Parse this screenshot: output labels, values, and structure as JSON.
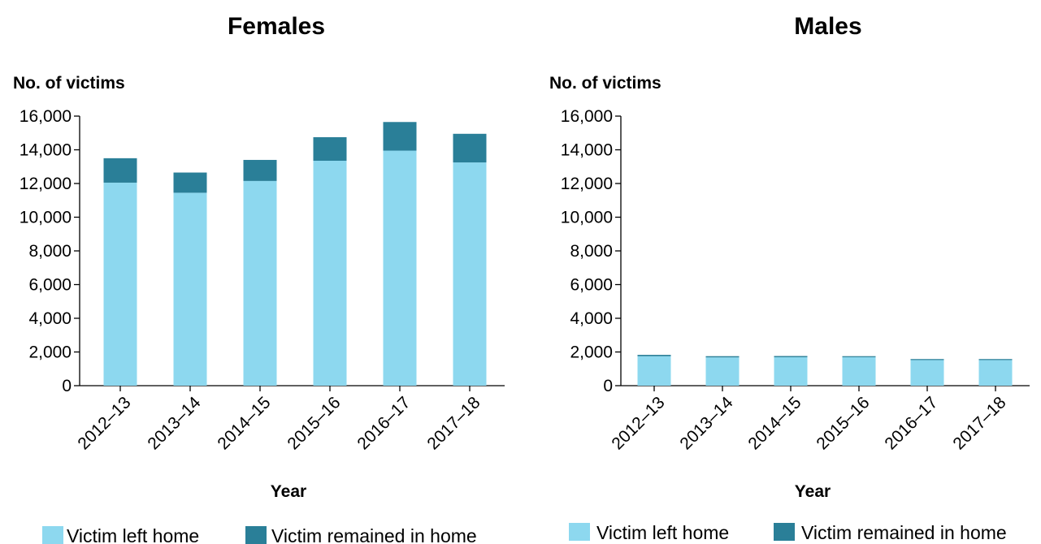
{
  "colors": {
    "victim_left_home": "#8dd8ef",
    "victim_remained_in_home": "#2a7f98",
    "axis": "#000000"
  },
  "chart_data": [
    {
      "type": "bar",
      "stacked": true,
      "title": "Females",
      "ylabel": "No. of victims",
      "xlabel": "Year",
      "ylim": [
        0,
        16000
      ],
      "yticks": [
        0,
        2000,
        4000,
        6000,
        8000,
        10000,
        12000,
        14000,
        16000
      ],
      "ytick_labels": [
        "0",
        "2,000",
        "4,000",
        "6,000",
        "8,000",
        "10,000",
        "12,000",
        "14,000",
        "16,000"
      ],
      "categories": [
        "2012–13",
        "2013–14",
        "2014–15",
        "2015–16",
        "2016–17",
        "2017–18"
      ],
      "series": [
        {
          "name": "Victim left home",
          "values": [
            12050,
            11450,
            12150,
            13350,
            13950,
            13250
          ]
        },
        {
          "name": "Victim remained in home",
          "values": [
            1450,
            1200,
            1250,
            1400,
            1700,
            1700
          ]
        }
      ],
      "legend_position": "bottom"
    },
    {
      "type": "bar",
      "stacked": true,
      "title": "Males",
      "ylabel": "No. of victims",
      "xlabel": "Year",
      "ylim": [
        0,
        16000
      ],
      "yticks": [
        0,
        2000,
        4000,
        6000,
        8000,
        10000,
        12000,
        14000,
        16000
      ],
      "ytick_labels": [
        "0",
        "2,000",
        "4,000",
        "6,000",
        "8,000",
        "10,000",
        "12,000",
        "14,000",
        "16,000"
      ],
      "categories": [
        "2012–13",
        "2013–14",
        "2014–15",
        "2015–16",
        "2016–17",
        "2017–18"
      ],
      "series": [
        {
          "name": "Victim left home",
          "values": [
            1750,
            1680,
            1690,
            1690,
            1520,
            1520
          ]
        },
        {
          "name": "Victim remained in home",
          "values": [
            80,
            70,
            70,
            60,
            60,
            60
          ]
        }
      ],
      "legend_position": "bottom"
    }
  ]
}
